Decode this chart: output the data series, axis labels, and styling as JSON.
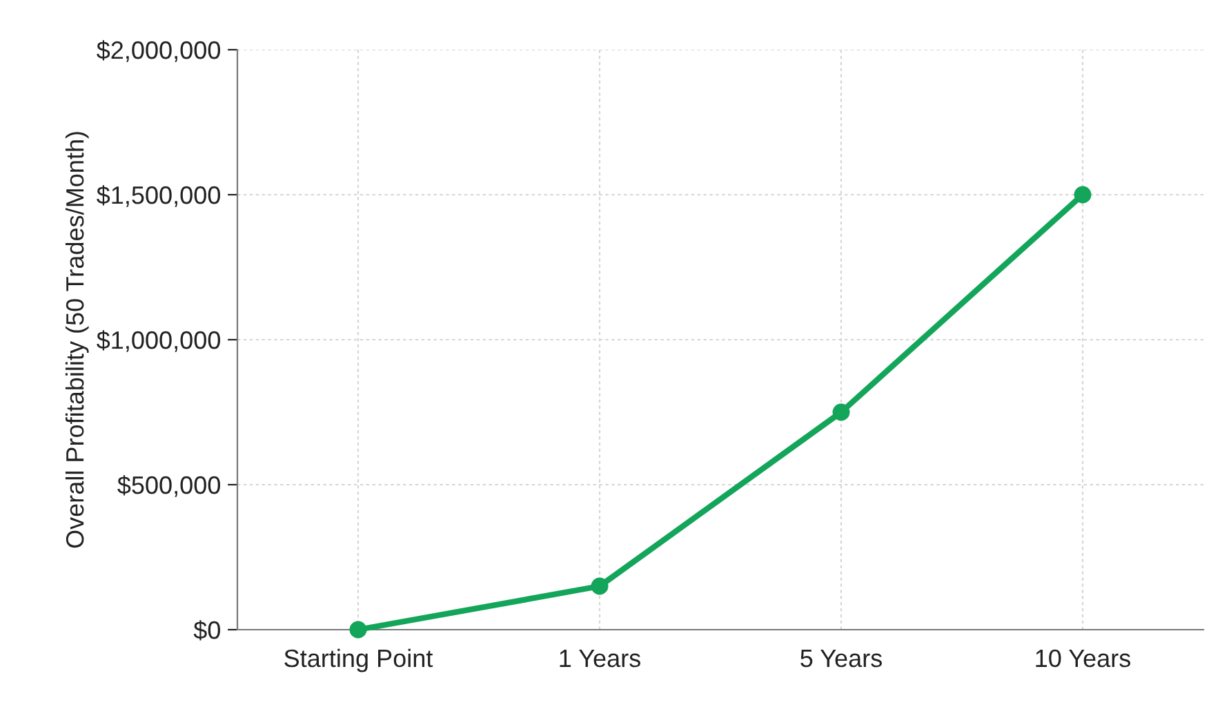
{
  "chart_data": {
    "type": "line",
    "ylabel": "Overall Profitability (50 Trades/Month)",
    "categories": [
      "Starting Point",
      "1 Years",
      "5 Years",
      "10 Years"
    ],
    "series": [
      {
        "color": "#13a55a",
        "values": [
          0,
          150000,
          750000,
          1500000
        ]
      }
    ],
    "ylim": [
      0,
      2000000
    ],
    "yticks": [
      {
        "value": 0,
        "label": "$0"
      },
      {
        "value": 500000,
        "label": "$500,000"
      },
      {
        "value": 1000000,
        "label": "$1,000,000"
      },
      {
        "value": 1500000,
        "label": "$1,500,000"
      },
      {
        "value": 2000000,
        "label": "$2,000,000"
      }
    ],
    "grid": true,
    "marker": "circle",
    "line_style": "solid"
  }
}
